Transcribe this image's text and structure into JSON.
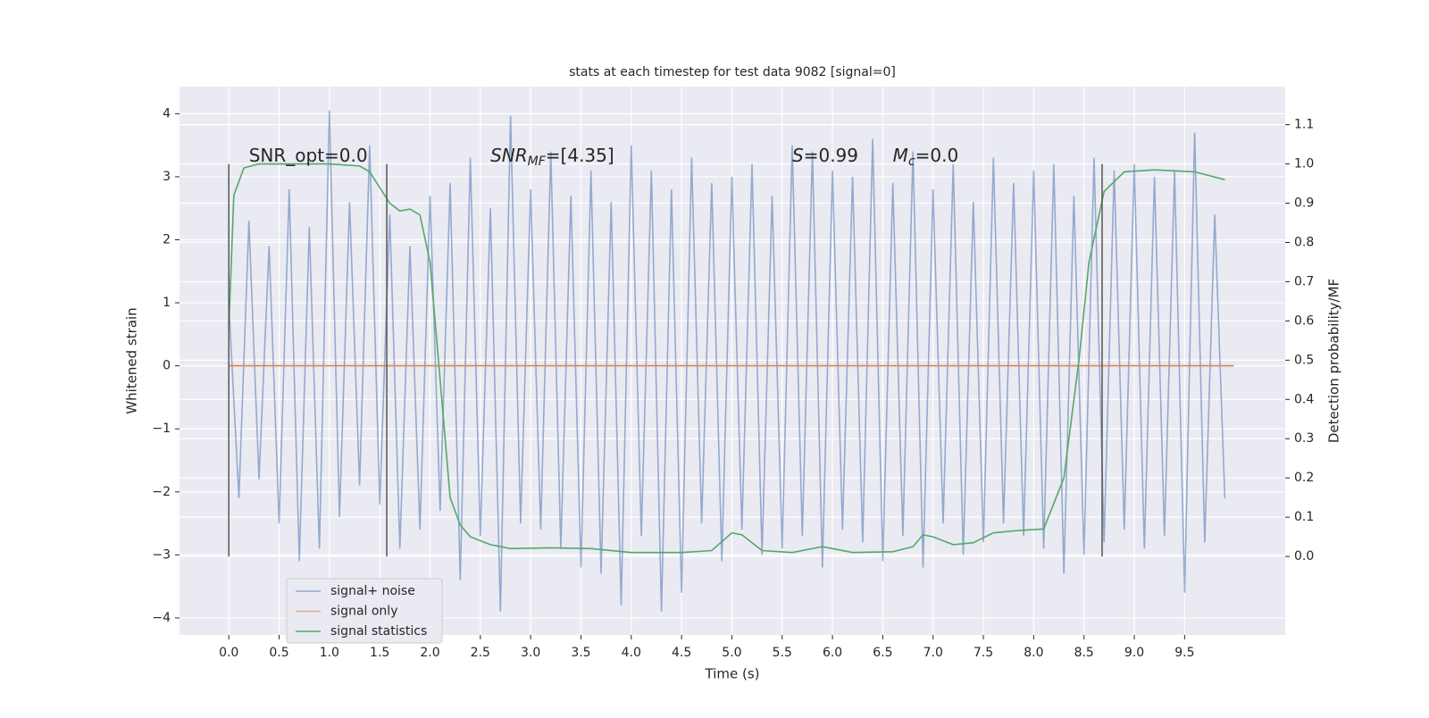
{
  "chart_data": {
    "type": "line",
    "title": "stats at each timestep for test data 9082 [signal=0]",
    "xlabel": "Time (s)",
    "ylabel": "Whitened strain",
    "y2label": "Detection probability/MF",
    "xlim": [
      -0.49,
      10.5
    ],
    "ylim": [
      -4.27,
      4.43
    ],
    "y2lim": [
      -0.2,
      1.197
    ],
    "xticks": [
      {
        "value": 0,
        "label": "0.0"
      },
      0.5,
      {
        "value": 1,
        "label": "1.0"
      },
      1.5,
      {
        "value": 2,
        "label": "2.0"
      },
      2.5,
      {
        "value": 3,
        "label": "3.0"
      },
      3.5,
      {
        "value": 4,
        "label": "4.0"
      },
      4.5,
      {
        "value": 5,
        "label": "5.0"
      },
      5.5,
      {
        "value": 6,
        "label": "6.0"
      },
      6.5,
      {
        "value": 7,
        "label": "7.0"
      },
      7.5,
      {
        "value": 8,
        "label": "8.0"
      },
      8.5,
      {
        "value": 9,
        "label": "9.0"
      },
      9.5
    ],
    "yticks": [
      {
        "value": -4,
        "label": "−4"
      },
      {
        "value": -3,
        "label": "−3"
      },
      {
        "value": -2,
        "label": "−2"
      },
      {
        "value": -1,
        "label": "−1"
      },
      0,
      1,
      2,
      3,
      4
    ],
    "y2ticks": [
      {
        "value": 0,
        "label": "0.0"
      },
      0.1,
      0.2,
      0.3,
      0.4,
      0.5,
      0.6,
      0.7,
      0.8,
      0.9,
      {
        "value": 1,
        "label": "1.0"
      },
      1.1
    ],
    "grid": true,
    "legend": "lower left",
    "markers": [
      0,
      1.57,
      8.68
    ],
    "annotations": [
      {
        "main": "SNR_opt=0.0"
      },
      {
        "main": "SNR",
        "sub": "MF",
        "rest": "=[4.35]"
      },
      {
        "main": "S",
        "rest": "=0.99"
      },
      {
        "main": "M",
        "sub": "c",
        "rest": "=0.0"
      }
    ],
    "series": [
      {
        "name": "signal+ noise",
        "color": "#4c72b0",
        "x": [
          0.0,
          0.1,
          0.2,
          0.3,
          0.4,
          0.5,
          0.6,
          0.7,
          0.8,
          0.9,
          1.0,
          1.1,
          1.2,
          1.3,
          1.4,
          1.5,
          1.6,
          1.7,
          1.8,
          1.9,
          2.0,
          2.1,
          2.2,
          2.3,
          2.4,
          2.5,
          2.6,
          2.7,
          2.8,
          2.9,
          3.0,
          3.1,
          3.2,
          3.3,
          3.4,
          3.5,
          3.6,
          3.7,
          3.8,
          3.9,
          4.0,
          4.1,
          4.2,
          4.3,
          4.4,
          4.5,
          4.6,
          4.7,
          4.8,
          4.9,
          5.0,
          5.1,
          5.2,
          5.3,
          5.4,
          5.5,
          5.6,
          5.7,
          5.8,
          5.9,
          6.0,
          6.1,
          6.2,
          6.3,
          6.4,
          6.5,
          6.6,
          6.7,
          6.8,
          6.9,
          7.0,
          7.1,
          7.2,
          7.3,
          7.4,
          7.5,
          7.6,
          7.7,
          7.8,
          7.9,
          8.0,
          8.1,
          8.2,
          8.3,
          8.4,
          8.5,
          8.6,
          8.7,
          8.8,
          8.9,
          9.0,
          9.1,
          9.2,
          9.3,
          9.4,
          9.5,
          9.6,
          9.7,
          9.8,
          9.9
        ],
        "values": [
          1.0,
          -2.1,
          2.3,
          -1.8,
          1.9,
          -2.5,
          2.8,
          -3.1,
          2.2,
          -2.9,
          4.05,
          -2.4,
          2.6,
          -1.9,
          3.5,
          -2.2,
          2.4,
          -2.9,
          1.9,
          -2.6,
          2.7,
          -2.3,
          2.9,
          -3.4,
          3.3,
          -2.7,
          2.5,
          -3.9,
          3.97,
          -2.5,
          2.8,
          -2.6,
          3.4,
          -2.9,
          2.7,
          -3.2,
          3.1,
          -3.3,
          2.6,
          -3.8,
          3.5,
          -2.7,
          3.1,
          -3.9,
          2.8,
          -3.6,
          3.3,
          -2.5,
          2.9,
          -3.1,
          3.0,
          -2.6,
          3.2,
          -3.0,
          2.7,
          -2.9,
          3.5,
          -2.7,
          3.4,
          -3.2,
          3.1,
          -2.6,
          3.0,
          -2.8,
          3.6,
          -3.1,
          2.9,
          -2.7,
          3.4,
          -3.2,
          2.8,
          -2.5,
          3.2,
          -3.0,
          2.6,
          -2.8,
          3.3,
          -2.5,
          2.9,
          -2.7,
          3.1,
          -2.9,
          3.2,
          -3.3,
          2.7,
          -3.0,
          3.3,
          -2.8,
          3.1,
          -2.6,
          3.2,
          -2.9,
          3.0,
          -2.7,
          3.1,
          -3.6,
          3.7,
          -2.8,
          2.4,
          -2.1
        ]
      },
      {
        "name": "signal only",
        "color": "#dd8452",
        "x": [
          0.0,
          9.99
        ],
        "values": [
          0,
          0
        ]
      },
      {
        "name": "signal statistics",
        "color": "#55a868",
        "axis": "y2",
        "x": [
          0,
          0.05,
          0.15,
          0.3,
          1.0,
          1.3,
          1.4,
          1.5,
          1.6,
          1.7,
          1.8,
          1.9,
          2.0,
          2.1,
          2.2,
          2.3,
          2.4,
          2.6,
          2.8,
          3.2,
          3.6,
          4.0,
          4.5,
          4.8,
          5.0,
          5.1,
          5.3,
          5.6,
          5.9,
          6.2,
          6.6,
          6.8,
          6.9,
          7.0,
          7.2,
          7.4,
          7.6,
          7.8,
          8.1,
          8.3,
          8.45,
          8.55,
          8.7,
          8.9,
          9.2,
          9.6,
          9.9
        ],
        "values": [
          0.58,
          0.92,
          0.99,
          1.0,
          1.0,
          0.995,
          0.98,
          0.94,
          0.9,
          0.88,
          0.885,
          0.87,
          0.75,
          0.45,
          0.15,
          0.08,
          0.05,
          0.03,
          0.02,
          0.022,
          0.02,
          0.01,
          0.01,
          0.015,
          0.06,
          0.055,
          0.015,
          0.01,
          0.025,
          0.01,
          0.012,
          0.025,
          0.055,
          0.05,
          0.03,
          0.035,
          0.06,
          0.065,
          0.07,
          0.2,
          0.5,
          0.75,
          0.93,
          0.98,
          0.985,
          0.98,
          0.96
        ]
      }
    ]
  }
}
